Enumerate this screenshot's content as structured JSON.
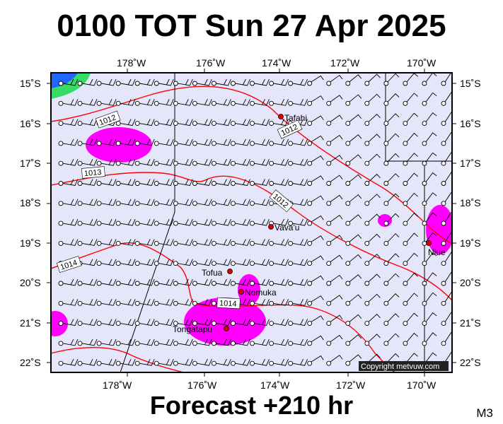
{
  "title": "0100 TOT Sun 27 Apr 2025",
  "subtitle": "Forecast +210 hr",
  "model_label": "M3",
  "copyright": "Copyright metvuw.com",
  "colors": {
    "ocean": "#e6e6fb",
    "isobar": "#ff0000",
    "rain": "#ff00ff",
    "place_marker": "#dd0000",
    "barb": "#000000"
  },
  "axes": {
    "lon_ticks": [
      "178˚W",
      "176˚W",
      "174˚W",
      "172˚W",
      "170˚W"
    ],
    "lat_ticks": [
      "15˚S",
      "16˚S",
      "17˚S",
      "18˚S",
      "19˚S",
      "20˚S",
      "21˚S",
      "22˚S"
    ]
  },
  "places": [
    {
      "name": "Tafahi"
    },
    {
      "name": "Vava'u"
    },
    {
      "name": "Niue"
    },
    {
      "name": "Tofua"
    },
    {
      "name": "Nomuka"
    },
    {
      "name": "Tongatapu"
    }
  ],
  "isobar_labels": [
    "1012",
    "1012",
    "1013",
    "1012",
    "1014",
    "1014"
  ]
}
